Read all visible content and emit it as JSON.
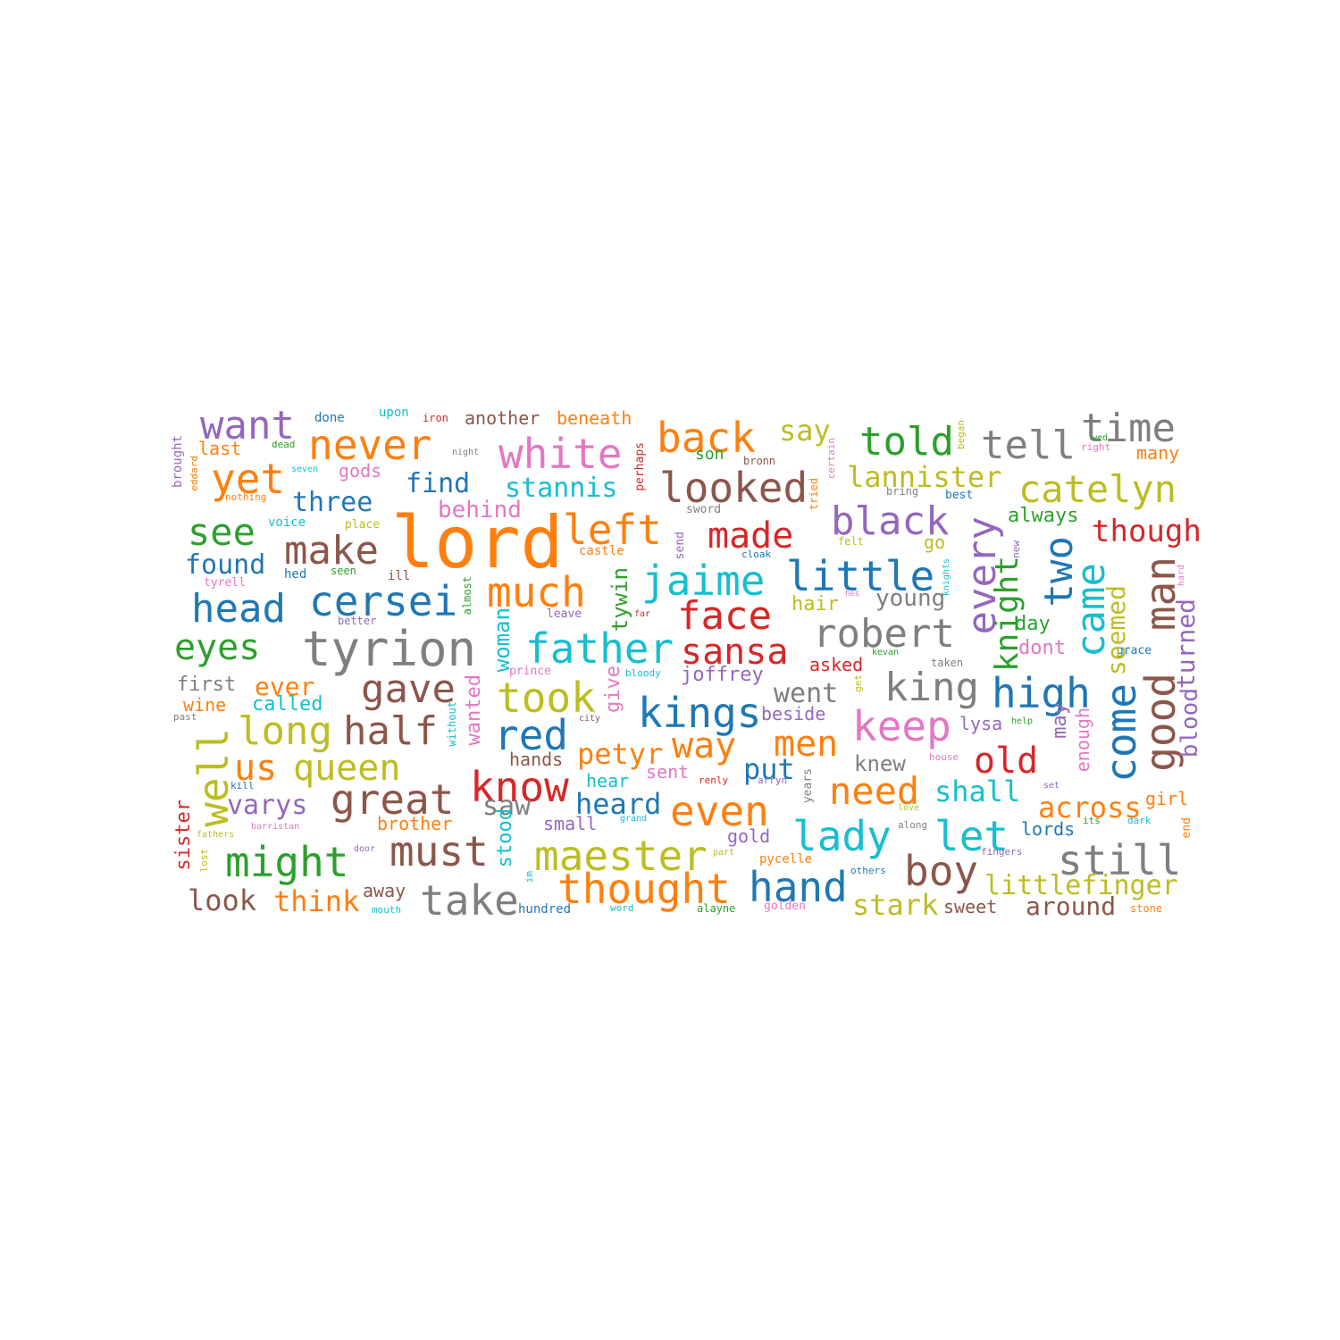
{
  "colors": {
    "blue": "#1f77b4",
    "orange": "#ff7f0e",
    "green": "#2ca02c",
    "red": "#d62728",
    "purple": "#9467bd",
    "brown": "#8c564b",
    "pink": "#e377c2",
    "gray": "#7f7f7f",
    "olive": "#bcbd22",
    "cyan": "#17becf"
  },
  "words": [
    {
      "text": "lord",
      "color": "orange"
    },
    {
      "text": "tyrion",
      "color": "gray"
    },
    {
      "text": "want",
      "color": "purple"
    },
    {
      "text": "never",
      "color": "orange"
    },
    {
      "text": "white",
      "color": "pink"
    },
    {
      "text": "back",
      "color": "orange"
    },
    {
      "text": "say",
      "color": "olive"
    },
    {
      "text": "told",
      "color": "green"
    },
    {
      "text": "tell",
      "color": "gray"
    },
    {
      "text": "time",
      "color": "gray"
    },
    {
      "text": "yet",
      "color": "orange"
    },
    {
      "text": "find",
      "color": "blue"
    },
    {
      "text": "stannis",
      "color": "cyan"
    },
    {
      "text": "looked",
      "color": "brown"
    },
    {
      "text": "lannister",
      "color": "olive"
    },
    {
      "text": "catelyn",
      "color": "olive"
    },
    {
      "text": "three",
      "color": "blue"
    },
    {
      "text": "behind",
      "color": "pink"
    },
    {
      "text": "see",
      "color": "green"
    },
    {
      "text": "make",
      "color": "brown"
    },
    {
      "text": "left",
      "color": "orange"
    },
    {
      "text": "made",
      "color": "red"
    },
    {
      "text": "black",
      "color": "purple"
    },
    {
      "text": "though",
      "color": "red"
    },
    {
      "text": "found",
      "color": "blue"
    },
    {
      "text": "head",
      "color": "blue"
    },
    {
      "text": "cersei",
      "color": "blue"
    },
    {
      "text": "much",
      "color": "orange"
    },
    {
      "text": "jaime",
      "color": "cyan"
    },
    {
      "text": "little",
      "color": "blue"
    },
    {
      "text": "face",
      "color": "red"
    },
    {
      "text": "eyes",
      "color": "green"
    },
    {
      "text": "father",
      "color": "cyan"
    },
    {
      "text": "sansa",
      "color": "red"
    },
    {
      "text": "robert",
      "color": "gray"
    },
    {
      "text": "gave",
      "color": "brown"
    },
    {
      "text": "took",
      "color": "olive"
    },
    {
      "text": "kings",
      "color": "blue"
    },
    {
      "text": "king",
      "color": "gray"
    },
    {
      "text": "high",
      "color": "blue"
    },
    {
      "text": "long",
      "color": "olive"
    },
    {
      "text": "half",
      "color": "brown"
    },
    {
      "text": "red",
      "color": "blue"
    },
    {
      "text": "way",
      "color": "orange"
    },
    {
      "text": "men",
      "color": "orange"
    },
    {
      "text": "keep",
      "color": "pink"
    },
    {
      "text": "us",
      "color": "orange"
    },
    {
      "text": "queen",
      "color": "olive"
    },
    {
      "text": "petyr",
      "color": "orange"
    },
    {
      "text": "put",
      "color": "blue"
    },
    {
      "text": "old",
      "color": "red"
    },
    {
      "text": "great",
      "color": "brown"
    },
    {
      "text": "know",
      "color": "red"
    },
    {
      "text": "need",
      "color": "orange"
    },
    {
      "text": "shall",
      "color": "cyan"
    },
    {
      "text": "varys",
      "color": "purple"
    },
    {
      "text": "heard",
      "color": "blue"
    },
    {
      "text": "even",
      "color": "orange"
    },
    {
      "text": "across",
      "color": "orange"
    },
    {
      "text": "lady",
      "color": "cyan"
    },
    {
      "text": "let",
      "color": "cyan"
    },
    {
      "text": "might",
      "color": "green"
    },
    {
      "text": "must",
      "color": "brown"
    },
    {
      "text": "maester",
      "color": "olive"
    },
    {
      "text": "still",
      "color": "gray"
    },
    {
      "text": "boy",
      "color": "brown"
    },
    {
      "text": "look",
      "color": "brown"
    },
    {
      "text": "think",
      "color": "orange"
    },
    {
      "text": "take",
      "color": "gray"
    },
    {
      "text": "thought",
      "color": "orange"
    },
    {
      "text": "hand",
      "color": "blue"
    },
    {
      "text": "stark",
      "color": "olive"
    },
    {
      "text": "littlefinger",
      "color": "olive"
    },
    {
      "text": "around",
      "color": "brown"
    },
    {
      "text": "went",
      "color": "gray"
    },
    {
      "text": "knew",
      "color": "gray"
    },
    {
      "text": "saw",
      "color": "gray"
    },
    {
      "text": "young",
      "color": "gray"
    },
    {
      "text": "hair",
      "color": "olive"
    },
    {
      "text": "ever",
      "color": "orange"
    },
    {
      "text": "called",
      "color": "cyan"
    },
    {
      "text": "first",
      "color": "gray"
    },
    {
      "text": "wine",
      "color": "orange"
    },
    {
      "text": "always",
      "color": "green"
    },
    {
      "text": "go",
      "color": "olive"
    },
    {
      "text": "day",
      "color": "green"
    },
    {
      "text": "dont",
      "color": "pink"
    },
    {
      "text": "asked",
      "color": "red"
    },
    {
      "text": "joffrey",
      "color": "purple"
    },
    {
      "text": "beside",
      "color": "purple"
    },
    {
      "text": "lysa",
      "color": "purple"
    },
    {
      "text": "hands",
      "color": "brown"
    },
    {
      "text": "sent",
      "color": "pink"
    },
    {
      "text": "hear",
      "color": "cyan"
    },
    {
      "text": "brother",
      "color": "orange"
    },
    {
      "text": "small",
      "color": "purple"
    },
    {
      "text": "gold",
      "color": "purple"
    },
    {
      "text": "lords",
      "color": "blue"
    },
    {
      "text": "girl",
      "color": "orange"
    },
    {
      "text": "sweet",
      "color": "brown"
    },
    {
      "text": "gods",
      "color": "pink"
    },
    {
      "text": "last",
      "color": "orange"
    },
    {
      "text": "another",
      "color": "brown"
    },
    {
      "text": "beneath",
      "color": "orange"
    },
    {
      "text": "done",
      "color": "blue"
    },
    {
      "text": "upon",
      "color": "cyan"
    },
    {
      "text": "iron",
      "color": "red"
    },
    {
      "text": "son",
      "color": "green"
    },
    {
      "text": "bronn",
      "color": "brown"
    },
    {
      "text": "many",
      "color": "orange"
    },
    {
      "text": "best",
      "color": "blue"
    },
    {
      "text": "bring",
      "color": "gray"
    },
    {
      "text": "sword",
      "color": "gray"
    },
    {
      "text": "castle",
      "color": "orange"
    },
    {
      "text": "cloak",
      "color": "blue"
    },
    {
      "text": "felt",
      "color": "olive"
    },
    {
      "text": "voice",
      "color": "cyan"
    },
    {
      "text": "place",
      "color": "olive"
    },
    {
      "text": "seen",
      "color": "green"
    },
    {
      "text": "hed",
      "color": "blue"
    },
    {
      "text": "ill",
      "color": "brown"
    },
    {
      "text": "tyrell",
      "color": "pink"
    },
    {
      "text": "better",
      "color": "purple"
    },
    {
      "text": "leave",
      "color": "purple"
    },
    {
      "text": "far",
      "color": "red"
    },
    {
      "text": "prince",
      "color": "pink"
    },
    {
      "text": "bloody",
      "color": "cyan"
    },
    {
      "text": "city",
      "color": "brown"
    },
    {
      "text": "past",
      "color": "gray"
    },
    {
      "text": "kill",
      "color": "blue"
    },
    {
      "text": "grand",
      "color": "cyan"
    },
    {
      "text": "renly",
      "color": "red"
    },
    {
      "text": "arryn",
      "color": "purple"
    },
    {
      "text": "house",
      "color": "pink"
    },
    {
      "text": "set",
      "color": "purple"
    },
    {
      "text": "help",
      "color": "green"
    },
    {
      "text": "kevan",
      "color": "green"
    },
    {
      "text": "taken",
      "color": "gray"
    },
    {
      "text": "hes",
      "color": "pink"
    },
    {
      "text": "grace",
      "color": "blue"
    },
    {
      "text": "night",
      "color": "gray"
    },
    {
      "text": "seven",
      "color": "cyan"
    },
    {
      "text": "dead",
      "color": "green"
    },
    {
      "text": "nothing",
      "color": "orange"
    },
    {
      "text": "right",
      "color": "pink"
    },
    {
      "text": "wed",
      "color": "green"
    },
    {
      "text": "love",
      "color": "olive"
    },
    {
      "text": "along",
      "color": "gray"
    },
    {
      "text": "its",
      "color": "green"
    },
    {
      "text": "dark",
      "color": "cyan"
    },
    {
      "text": "fingers",
      "color": "purple"
    },
    {
      "text": "others",
      "color": "blue"
    },
    {
      "text": "part",
      "color": "olive"
    },
    {
      "text": "pycelle",
      "color": "orange"
    },
    {
      "text": "fathers",
      "color": "olive"
    },
    {
      "text": "barristan",
      "color": "pink"
    },
    {
      "text": "door",
      "color": "purple"
    },
    {
      "text": "away",
      "color": "brown"
    },
    {
      "text": "mouth",
      "color": "cyan"
    },
    {
      "text": "hundred",
      "color": "blue"
    },
    {
      "text": "word",
      "color": "cyan"
    },
    {
      "text": "alayne",
      "color": "green"
    },
    {
      "text": "golden",
      "color": "pink"
    },
    {
      "text": "stone",
      "color": "orange"
    },
    {
      "text": "every",
      "color": "purple"
    },
    {
      "text": "two",
      "color": "blue"
    },
    {
      "text": "knight",
      "color": "green"
    },
    {
      "text": "came",
      "color": "cyan"
    },
    {
      "text": "seemed",
      "color": "olive"
    },
    {
      "text": "man",
      "color": "brown"
    },
    {
      "text": "good",
      "color": "brown"
    },
    {
      "text": "turned",
      "color": "purple"
    },
    {
      "text": "blood",
      "color": "purple"
    },
    {
      "text": "come",
      "color": "blue"
    },
    {
      "text": "may",
      "color": "purple"
    },
    {
      "text": "enough",
      "color": "pink"
    },
    {
      "text": "well",
      "color": "olive"
    },
    {
      "text": "sister",
      "color": "red"
    },
    {
      "text": "tywin",
      "color": "green"
    },
    {
      "text": "woman",
      "color": "cyan"
    },
    {
      "text": "wanted",
      "color": "pink"
    },
    {
      "text": "give",
      "color": "pink"
    },
    {
      "text": "stood",
      "color": "cyan"
    },
    {
      "text": "almost",
      "color": "green"
    },
    {
      "text": "without",
      "color": "cyan"
    },
    {
      "text": "years",
      "color": "gray"
    },
    {
      "text": "brought",
      "color": "purple"
    },
    {
      "text": "eddard",
      "color": "orange"
    },
    {
      "text": "perhaps",
      "color": "red"
    },
    {
      "text": "send",
      "color": "purple"
    },
    {
      "text": "tried",
      "color": "orange"
    },
    {
      "text": "certain",
      "color": "pink"
    },
    {
      "text": "began",
      "color": "olive"
    },
    {
      "text": "new",
      "color": "purple"
    },
    {
      "text": "knights",
      "color": "cyan"
    },
    {
      "text": "hard",
      "color": "pink"
    },
    {
      "text": "get",
      "color": "olive"
    },
    {
      "text": "end",
      "color": "orange"
    },
    {
      "text": "lost",
      "color": "olive"
    },
    {
      "text": "im",
      "color": "cyan"
    }
  ]
}
